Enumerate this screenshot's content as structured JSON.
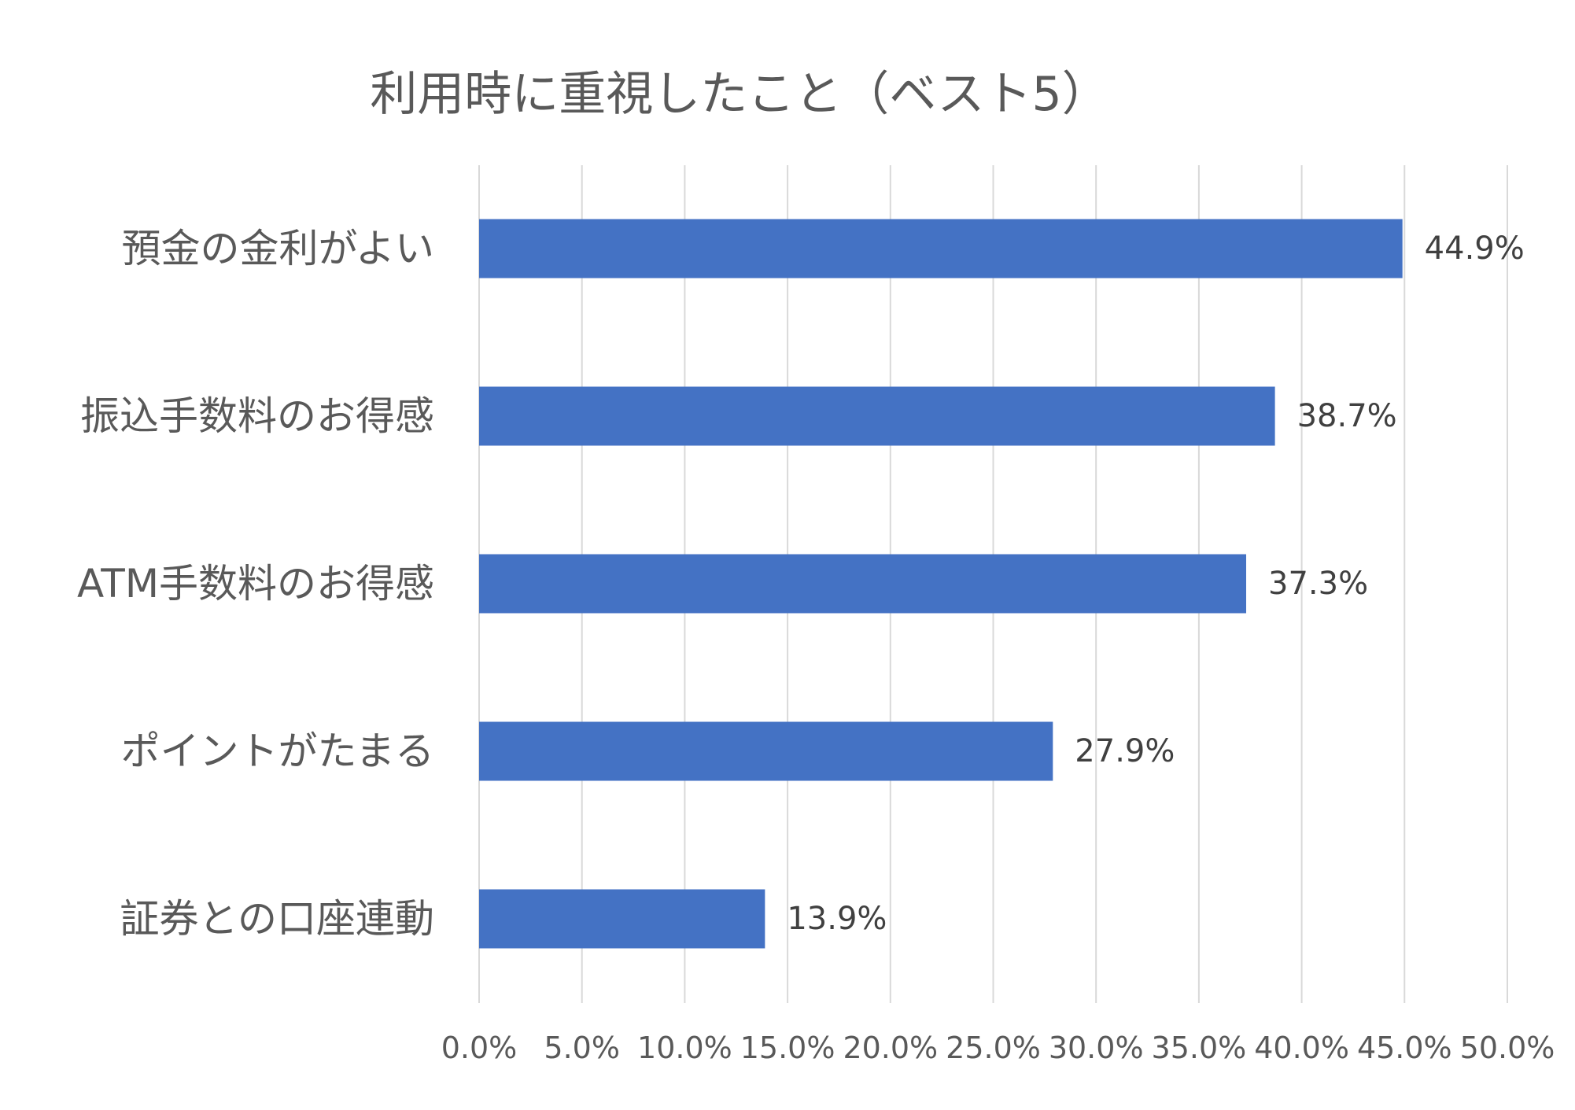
{
  "chart_data": {
    "type": "bar",
    "orientation": "horizontal",
    "title": "利用時に重視したこと（ベスト5）",
    "categories": [
      "預金の金利がよい",
      "振込手数料のお得感",
      "ATM手数料のお得感",
      "ポイントがたまる",
      "証券との口座連動"
    ],
    "values": [
      44.9,
      38.7,
      37.3,
      27.9,
      13.9
    ],
    "data_labels": [
      "44.9%",
      "38.7%",
      "37.3%",
      "27.9%",
      "13.9%"
    ],
    "xlim": [
      0,
      50
    ],
    "xticks": [
      0,
      5,
      10,
      15,
      20,
      25,
      30,
      35,
      40,
      45,
      50
    ],
    "xtick_labels": [
      "0.0%",
      "5.0%",
      "10.0%",
      "15.0%",
      "20.0%",
      "25.0%",
      "30.0%",
      "35.0%",
      "40.0%",
      "45.0%",
      "50.0%"
    ],
    "grid": "vertical",
    "legend": "none",
    "bar_color": "#4472c4"
  }
}
